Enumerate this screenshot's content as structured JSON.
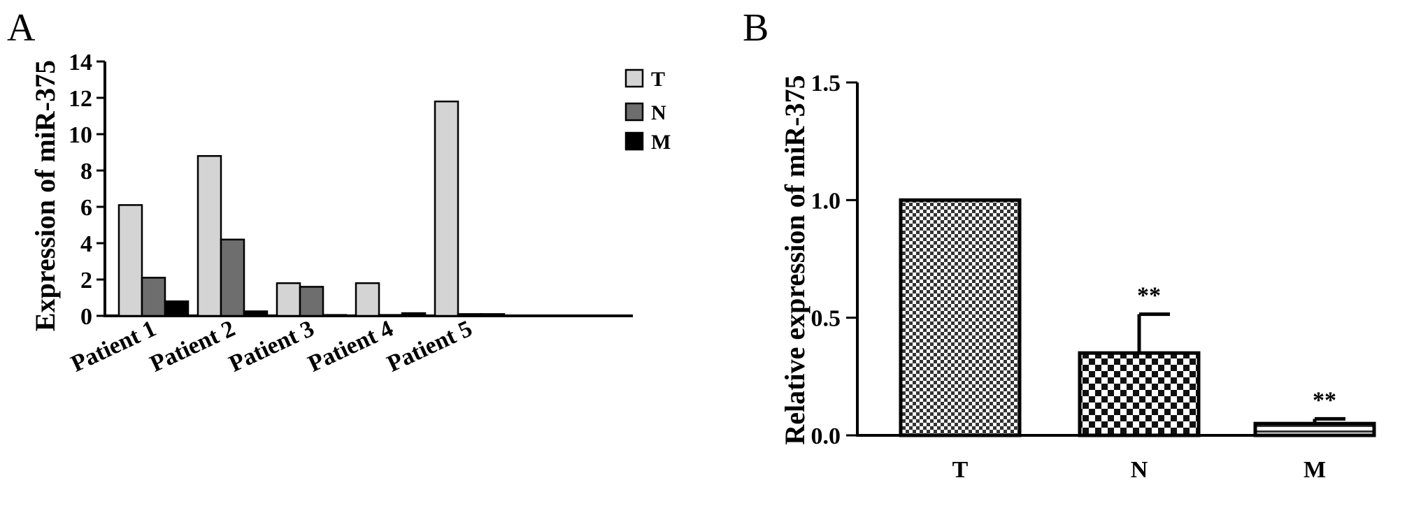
{
  "chart_data": [
    {
      "type": "bar",
      "panel_label": "A",
      "ylabel": "Expression of miR-375",
      "categories": [
        "Patient 1",
        "Patient 2",
        "Patient 3",
        "Patient 4",
        "Patient 5"
      ],
      "series": [
        {
          "name": "T",
          "color": "#d4d4d4",
          "values": [
            6.1,
            8.8,
            1.8,
            1.8,
            11.8
          ]
        },
        {
          "name": "N",
          "color": "#6e6e6e",
          "values": [
            2.1,
            4.2,
            1.6,
            0.05,
            0.1
          ]
        },
        {
          "name": "M",
          "color": "#000000",
          "values": [
            0.8,
            0.25,
            0.05,
            0.15,
            0.1
          ]
        }
      ],
      "ylim": [
        0,
        14
      ],
      "yticks": [
        0,
        2,
        4,
        6,
        8,
        10,
        12,
        14
      ],
      "ytick_labels": [
        "0",
        "2",
        "4",
        "6",
        "8",
        "10",
        "12",
        "14"
      ],
      "legend_position": "top-right",
      "grid": false
    },
    {
      "type": "bar",
      "panel_label": "B",
      "ylabel": "Relative expression of miR-375",
      "categories": [
        "T",
        "N",
        "M"
      ],
      "values": [
        1.0,
        0.35,
        0.05
      ],
      "errors": [
        0,
        0.165,
        0.02
      ],
      "annotations": [
        "",
        "**",
        "**"
      ],
      "patterns": [
        "fine-checker",
        "coarse-checker",
        "horizontal-stripes"
      ],
      "ylim": [
        0,
        1.5
      ],
      "yticks": [
        0,
        0.5,
        1.0,
        1.5
      ],
      "ytick_labels": [
        "0.0",
        "0.5",
        "1.0",
        "1.5"
      ],
      "grid": false
    }
  ]
}
